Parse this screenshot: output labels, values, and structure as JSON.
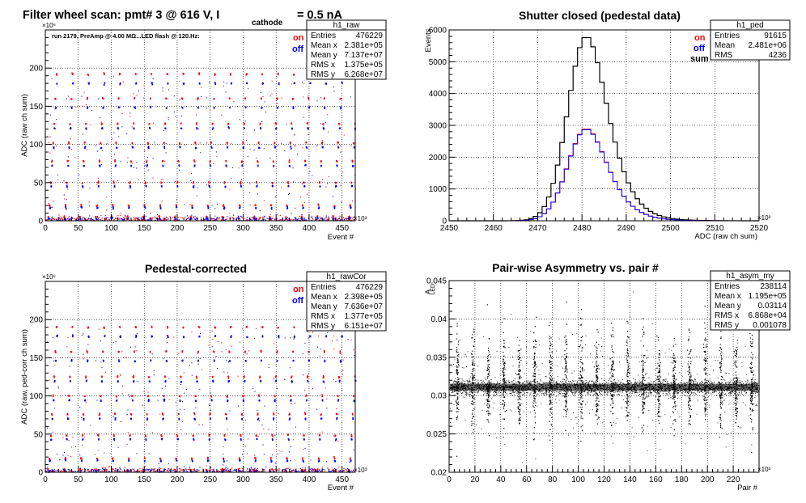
{
  "colors": {
    "on": "#ff0000",
    "off": "#0000ff",
    "sum": "#000000"
  },
  "chart_data": [
    {
      "id": "raw",
      "type": "scatter",
      "title_main": "Filter wheel scan: pmt#   3 @   616 V, I",
      "title_sub": "cathode",
      "title_end": "= 0.5 nA",
      "annotation": "run 2179, PreAmp @ 4.00 MΩ...LED flash @  120.Hz:",
      "xlabel": "Event #",
      "ylabel": "ADC (raw ch sum)",
      "x_exponent": "×10³",
      "y_exponent": "×10⁶",
      "xlim": [
        0,
        470
      ],
      "ylim": [
        0,
        250
      ],
      "xticks": [
        0,
        50,
        100,
        150,
        200,
        250,
        300,
        350,
        400,
        450
      ],
      "yticks": [
        0,
        50,
        100,
        150,
        200
      ],
      "grid": true,
      "legend": [
        "on",
        "off"
      ],
      "legend_position": "top-right",
      "stats": {
        "title": "h1_raw",
        "rows": [
          [
            "Entries",
            "476229"
          ],
          [
            "Mean x",
            "2.381e+05"
          ],
          [
            "Mean y",
            "7.137e+07"
          ],
          [
            "RMS x",
            "1.375e+05"
          ],
          [
            "RMS y",
            "6.268e+07"
          ]
        ]
      },
      "levels_on": [
        5,
        20,
        50,
        78,
        102,
        127,
        160,
        192
      ],
      "levels_off": [
        3,
        17,
        45,
        72,
        96,
        121,
        148,
        180
      ],
      "cycle_period": 24
    },
    {
      "id": "ped",
      "type": "histogram",
      "title": "Shutter closed (pedestal data)",
      "xlabel": "ADC (raw ch sum)",
      "ylabel": "Events",
      "x_exponent": "×10³",
      "xlim": [
        2450,
        2520
      ],
      "ylim": [
        0,
        6000
      ],
      "xticks": [
        2450,
        2460,
        2470,
        2480,
        2490,
        2500,
        2510,
        2520
      ],
      "yticks": [
        0,
        1000,
        2000,
        3000,
        4000,
        5000,
        6000
      ],
      "grid": true,
      "legend": [
        "on",
        "off",
        "sum"
      ],
      "legend_position": "top-right",
      "stats": {
        "title": "h1_ped",
        "rows": [
          [
            "Entries",
            "91615"
          ],
          [
            "Mean",
            "2.481e+06"
          ],
          [
            "RMS",
            "4236"
          ]
        ]
      },
      "series": [
        {
          "name": "sum",
          "mean": 2481,
          "sigma": 4.2,
          "peak": 5800
        },
        {
          "name": "on",
          "mean": 2481,
          "sigma": 4.2,
          "peak": 2900
        },
        {
          "name": "off",
          "mean": 2481,
          "sigma": 4.2,
          "peak": 2880
        }
      ]
    },
    {
      "id": "rawcor",
      "type": "scatter",
      "title": "Pedestal-corrected",
      "xlabel": "Event #",
      "ylabel": "ADC (raw, ped-corr ch sum)",
      "x_exponent": "×10³",
      "y_exponent": "×10⁶",
      "xlim": [
        0,
        470
      ],
      "ylim": [
        0,
        250
      ],
      "xticks": [
        0,
        50,
        100,
        150,
        200,
        250,
        300,
        350,
        400,
        450
      ],
      "yticks": [
        0,
        50,
        100,
        150,
        200
      ],
      "grid": true,
      "legend": [
        "on",
        "off"
      ],
      "legend_position": "top-right",
      "stats": {
        "title": "h1_rawCor",
        "rows": [
          [
            "Entries",
            "476229"
          ],
          [
            "Mean x",
            "2.398e+05"
          ],
          [
            "Mean y",
            "7.636e+07"
          ],
          [
            "RMS x",
            "1.377e+05"
          ],
          [
            "RMS y",
            "6.151e+07"
          ]
        ]
      },
      "levels_on": [
        3,
        18,
        48,
        76,
        100,
        125,
        158,
        190
      ],
      "levels_off": [
        1,
        15,
        43,
        70,
        94,
        119,
        146,
        178
      ],
      "cycle_period": 24
    },
    {
      "id": "asym",
      "type": "scatter",
      "title": "Pair-wise Asymmetry vs. pair #",
      "xlabel": "Pair #",
      "ylabel": "A",
      "ylabel_sub": "LED",
      "x_exponent": "×10³",
      "xlim": [
        0,
        240
      ],
      "ylim": [
        0.02,
        0.045
      ],
      "xticks": [
        0,
        20,
        40,
        60,
        80,
        100,
        120,
        140,
        160,
        180,
        200,
        220
      ],
      "yticks": [
        0.02,
        0.025,
        0.03,
        0.035,
        0.04,
        0.045
      ],
      "yticklabels": [
        "0.02",
        "0.025",
        "0.03",
        "0.035",
        "0.04",
        "0.045"
      ],
      "grid": true,
      "stats": {
        "title": "h1_asym_my",
        "rows": [
          [
            "Entries",
            "238114"
          ],
          [
            "Mean x",
            "1.195e+05"
          ],
          [
            "Mean y",
            "0.03114"
          ],
          [
            "RMS x",
            "6.868e+04"
          ],
          [
            "RMS y",
            "0.001078"
          ]
        ]
      },
      "band_center": 0.0311,
      "band_halfwidth": 0.0008,
      "spike_period": 12
    }
  ]
}
